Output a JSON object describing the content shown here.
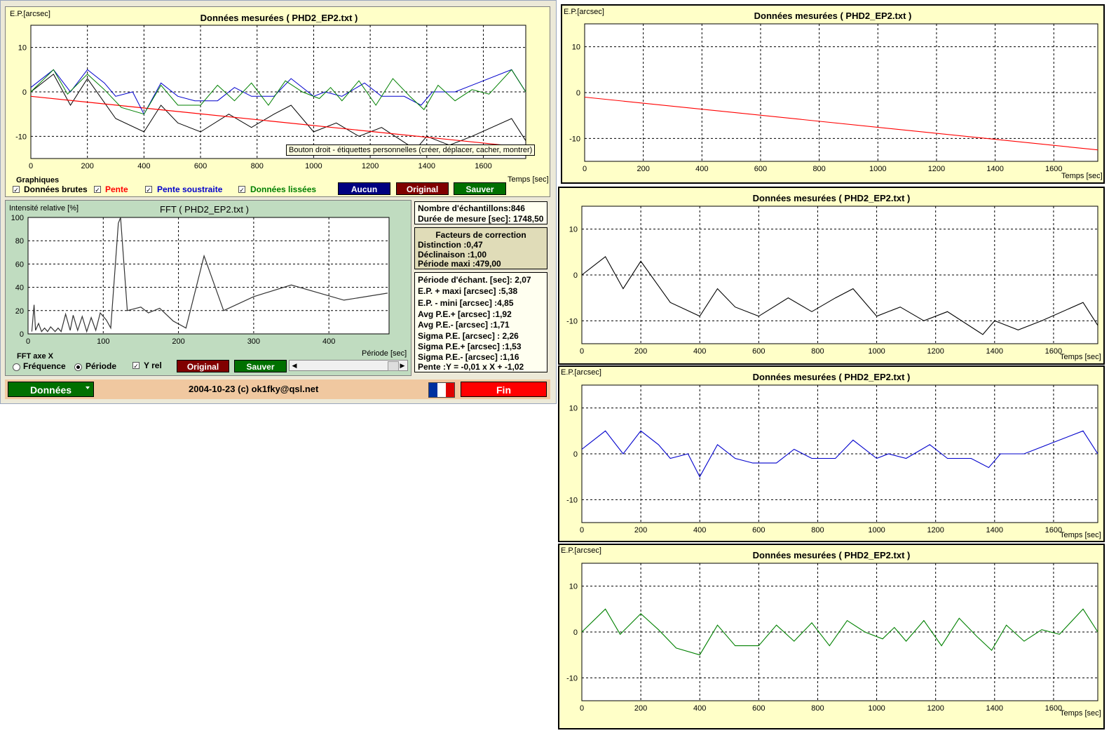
{
  "main_chart": {
    "ylabel": "E.P.[arcsec]",
    "title": "Données mesurées ( PHD2_EP2.txt )",
    "xlabel": "Temps [sec]",
    "tooltip": "Bouton droit - étiquettes personnelles (créer, déplacer, cacher, montrer)",
    "y_ticks": [
      "10",
      "0",
      "-10"
    ],
    "x_ticks": [
      "0",
      "200",
      "400",
      "600",
      "800",
      "1000",
      "1200",
      "1400",
      "1600"
    ]
  },
  "graphics": {
    "group_label": "Graphiques",
    "raw_label": "Données brutes",
    "slope_label": "Pente",
    "sub_label": "Pente soustraite",
    "smooth_label": "Données lissées",
    "check": "✓",
    "none_button": "Aucun",
    "original_button": "Original",
    "save_button": "Sauver"
  },
  "fft": {
    "ylabel": "Intensité relative [%]",
    "title": "FFT ( PHD2_EP2.txt )",
    "xlabel": "Période [sec]",
    "y_ticks": [
      "100",
      "80",
      "60",
      "40",
      "20",
      "0"
    ],
    "x_ticks": [
      "0",
      "100",
      "200",
      "300",
      "400"
    ],
    "axis_group": "FFT  axe X",
    "freq_label": "Fréquence",
    "period_label": "Période",
    "yrel_label": "Y rel",
    "original_button": "Original",
    "save_button": "Sauver"
  },
  "stats": {
    "samples": "Nombre d'échantillons:846",
    "duration": "Durée de mesure [sec]: 1748,50",
    "corr_title": "Facteurs de correction",
    "distinction": "Distinction :0,47",
    "declinaison": "Déclinaison :1,00",
    "period_max": "Période maxi :479,00",
    "sample_period": "Période d'échant. [sec]: 2,07",
    "ep_max": "E.P. + maxi [arcsec] :5,38",
    "ep_min": "E.P. - mini [arcsec] :4,85",
    "avg_plus": "Avg P.E.+ [arcsec] :1,92",
    "avg_minus": "Avg P.E.- [arcsec] :1,71",
    "sigma": "Sigma P.E. [arcsec] : 2,26",
    "sigma_plus": "Sigma P.E.+ [arcsec] :1,53",
    "sigma_minus": "Sigma P.E.- [arcsec] :1,16",
    "slope": "Pente :Y = -0,01 x X + -1,02"
  },
  "footer": {
    "data_button": "Données",
    "copyright": "2004-10-23 (c) ok1fky@qsl.net",
    "end_button": "Fin"
  },
  "right_panels": {
    "ylabel": "E.P.[arcsec]",
    "title": "Données mesurées ( PHD2_EP2.txt )",
    "xlabel": "Temps [sec]"
  },
  "colors": {
    "raw": "#000000",
    "slope": "#ff0000",
    "subtracted": "#0000cc",
    "smoothed": "#008000",
    "panel_bg": "#ffffc8",
    "fft_bg": "#c0dcc0",
    "footer_bg": "#f0c8a0"
  },
  "chart_data": [
    {
      "type": "line",
      "title": "Données mesurées ( PHD2_EP2.txt )",
      "xlabel": "Temps [sec]",
      "ylabel": "E.P.[arcsec]",
      "xlim": [
        0,
        1750
      ],
      "ylim": [
        -15,
        15
      ],
      "series": [
        {
          "name": "Données brutes",
          "x": [
            0,
            80,
            140,
            200,
            300,
            400,
            460,
            520,
            600,
            700,
            780,
            860,
            920,
            1000,
            1080,
            1160,
            1240,
            1360,
            1400,
            1480,
            1560,
            1700,
            1750
          ],
          "y": [
            0,
            4,
            -3,
            3,
            -6,
            -9,
            -3,
            -7,
            -9,
            -5,
            -8,
            -5,
            -3,
            -9,
            -7,
            -10,
            -8,
            -13,
            -10,
            -12,
            -10,
            -6,
            -11
          ]
        },
        {
          "name": "Pente",
          "x": [
            0,
            1750
          ],
          "y": [
            -1,
            -12.5
          ]
        },
        {
          "name": "Pente soustraite",
          "x": [
            0,
            80,
            140,
            200,
            260,
            300,
            360,
            400,
            460,
            520,
            580,
            660,
            720,
            780,
            860,
            920,
            1000,
            1040,
            1100,
            1180,
            1240,
            1320,
            1380,
            1420,
            1500,
            1580,
            1700,
            1750
          ],
          "y": [
            1,
            5,
            0,
            5,
            2,
            -1,
            0,
            -5,
            2,
            -1,
            -2,
            -2,
            1,
            -1,
            -1,
            3,
            -1,
            0,
            -1,
            2,
            -1,
            -1,
            -3,
            0,
            0,
            2,
            5,
            0
          ]
        },
        {
          "name": "Données lissées",
          "x": [
            0,
            80,
            130,
            200,
            260,
            320,
            400,
            460,
            520,
            600,
            660,
            720,
            780,
            840,
            900,
            960,
            1020,
            1060,
            1100,
            1160,
            1220,
            1280,
            1340,
            1390,
            1440,
            1500,
            1560,
            1620,
            1700,
            1750
          ],
          "y": [
            0,
            5,
            -0.5,
            4,
            0.5,
            -3.5,
            -5,
            1.5,
            -3,
            -3,
            1.5,
            -2,
            2,
            -3,
            2.5,
            0,
            -1.5,
            1,
            -2,
            2.5,
            -3,
            3,
            -1,
            -4,
            1.5,
            -2,
            0.5,
            -0.5,
            5,
            0
          ]
        }
      ]
    },
    {
      "type": "line",
      "title": "FFT ( PHD2_EP2.txt )",
      "xlabel": "Période [sec]",
      "ylabel": "Intensité relative [%]",
      "xlim": [
        0,
        480
      ],
      "ylim": [
        0,
        100
      ],
      "series": [
        {
          "name": "FFT",
          "x": [
            5,
            8,
            10,
            14,
            18,
            22,
            26,
            30,
            36,
            40,
            44,
            50,
            56,
            60,
            66,
            72,
            78,
            84,
            90,
            96,
            104,
            110,
            120,
            123,
            132,
            150,
            160,
            175,
            193,
            210,
            234,
            260,
            300,
            350,
            420,
            478
          ],
          "y": [
            2,
            25,
            3,
            9,
            2,
            5,
            2,
            6,
            2,
            5,
            2,
            17,
            3,
            16,
            3,
            15,
            2,
            14,
            3,
            18,
            12,
            5,
            95,
            100,
            20,
            23,
            18,
            22,
            11,
            5,
            67,
            20,
            32,
            42,
            29,
            35
          ]
        }
      ]
    }
  ]
}
